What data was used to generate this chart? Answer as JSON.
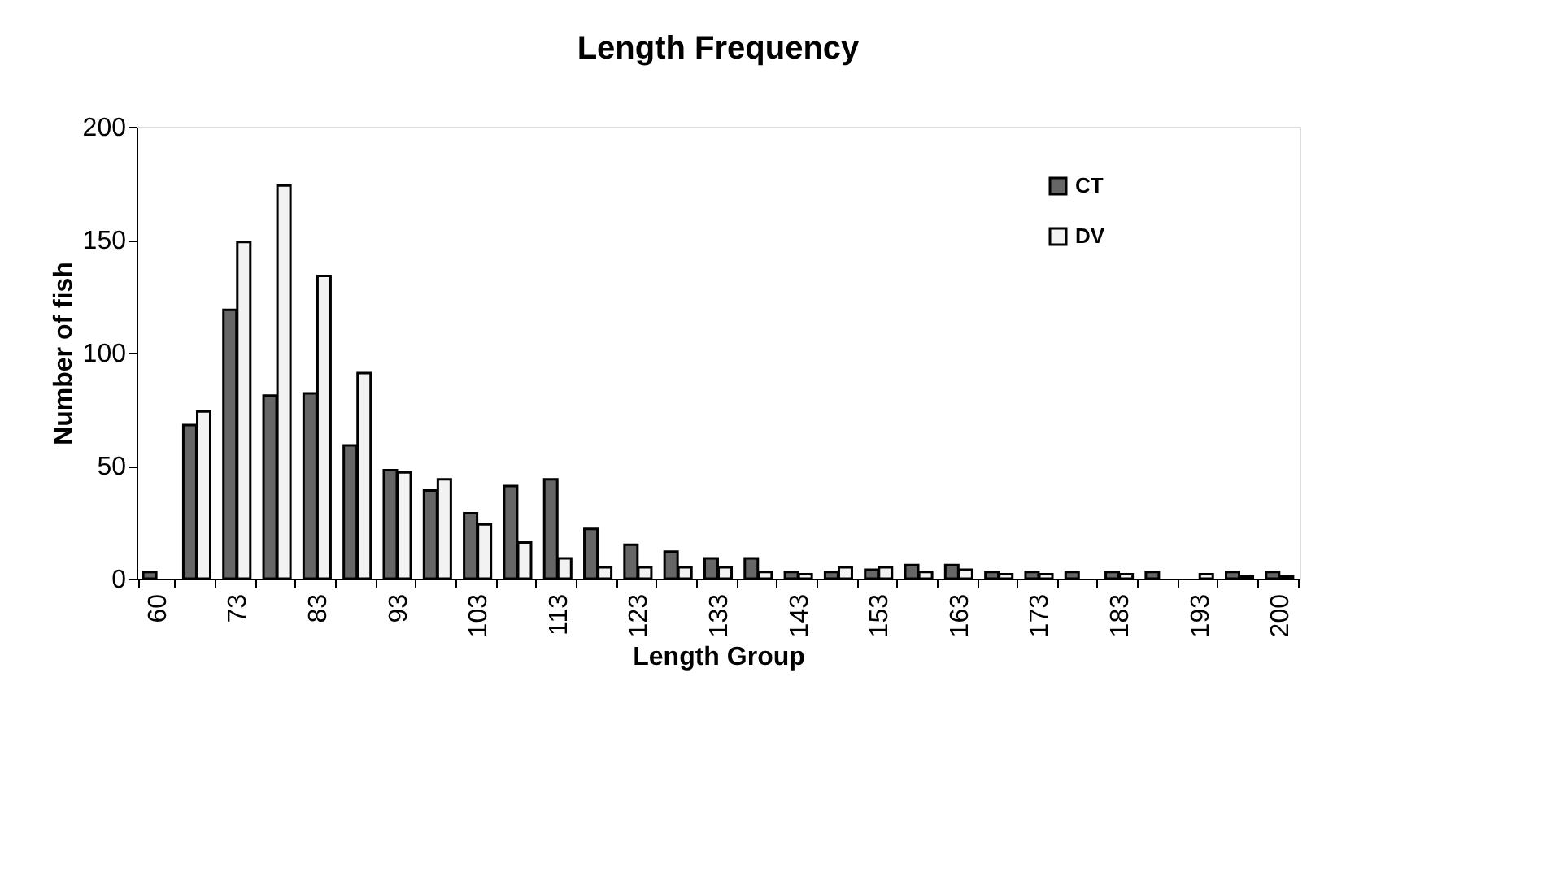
{
  "chart_data": {
    "type": "bar",
    "title": "Length Frequency",
    "xlabel": "Length Group",
    "ylabel": "Number of fish",
    "categories": [
      "60",
      null,
      "73",
      null,
      "83",
      null,
      "93",
      null,
      "103",
      null,
      "113",
      null,
      "123",
      null,
      "133",
      null,
      "143",
      null,
      "153",
      null,
      "163",
      null,
      "173",
      null,
      "183",
      null,
      "193",
      null,
      "200"
    ],
    "series": [
      {
        "name": "CT",
        "color": "#666666",
        "values": [
          3,
          68,
          119,
          81,
          82,
          59,
          48,
          39,
          29,
          41,
          44,
          22,
          15,
          12,
          9,
          9,
          3,
          3,
          4,
          6,
          6,
          3,
          3,
          3,
          3,
          3,
          null,
          3,
          3
        ]
      },
      {
        "name": "DV",
        "color": "#f2f2f2",
        "values": [
          null,
          74,
          149,
          174,
          134,
          91,
          47,
          44,
          24,
          16,
          9,
          5,
          5,
          5,
          5,
          3,
          2,
          5,
          5,
          3,
          4,
          2,
          2,
          null,
          2,
          null,
          2,
          1,
          1
        ]
      }
    ],
    "ylim": [
      0,
      200
    ],
    "yticks": [
      0,
      50,
      100,
      150,
      200
    ],
    "grid": false,
    "legend": "top right"
  }
}
